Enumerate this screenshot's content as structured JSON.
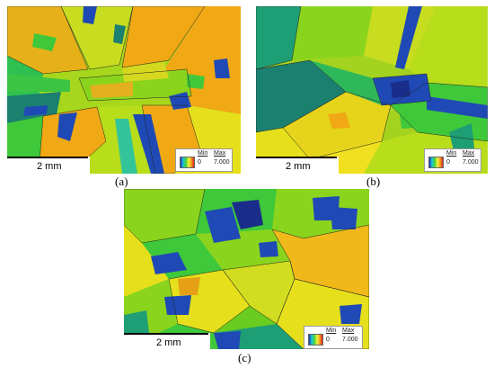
{
  "panels": [
    {
      "id": "a",
      "caption": "(a)",
      "scale_label": "2 mm",
      "legend": {
        "min_label": "Min",
        "max_label": "Max",
        "min_value": "0",
        "max_value": "7.000"
      },
      "colors": {
        "base": "#a6d71c"
      }
    },
    {
      "id": "b",
      "caption": "(b)",
      "scale_label": "2 mm",
      "legend": {
        "min_label": "Min",
        "max_label": "Max",
        "min_value": "0",
        "max_value": "7.000"
      },
      "colors": {
        "base": "#a3d31f"
      }
    },
    {
      "id": "c",
      "caption": "(c)",
      "scale_label": "2 mm",
      "legend": {
        "min_label": "Min",
        "max_label": "Max",
        "min_value": "0",
        "max_value": "7.000"
      },
      "colors": {
        "base": "#69cc1e"
      }
    }
  ],
  "palette": {
    "orange": "#f0a814",
    "orange_dark": "#e59a10",
    "yellow": "#e6e01c",
    "yellow_green": "#b8dd1a",
    "light_green": "#8ad41d",
    "green": "#3fc83a",
    "teal": "#1e9e74",
    "dark_teal": "#1b8070",
    "blue": "#1f4ab5",
    "navy": "#1b2d8a",
    "cyan_green": "#34c49a"
  }
}
